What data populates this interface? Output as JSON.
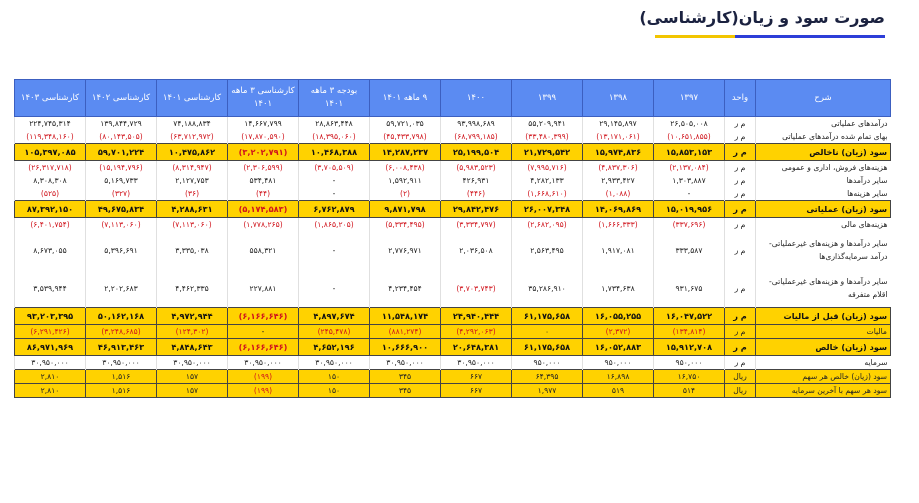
{
  "title": "صورت سود و زیان(کارشناسی)",
  "headers": [
    "شرح",
    "واحد",
    "۱۳۹۷",
    "۱۳۹۸",
    "۱۳۹۹",
    "۱۴۰۰",
    "۹ ماهه ۱۴۰۱",
    "بودجه ۳ ماهه ۱۴۰۱",
    "کارشناسی ۳ ماهه ۱۴۰۱",
    "کارشناسی ۱۴۰۱",
    "کارشناسی ۱۴۰۲",
    "کارشناسی ۱۴۰۳"
  ],
  "rows": [
    {
      "label": "درآمدهای عملیاتی",
      "unit": "م ر",
      "values": [
        "۲۶,۵۰۵,۰۰۸",
        "۲۹,۱۴۵,۸۹۷",
        "۵۵,۲۰۹,۹۴۱",
        "۹۳,۹۹۸,۶۸۹",
        "۵۹,۷۲۱,۰۳۵",
        "۲۸,۸۶۳,۴۴۸",
        "۱۴,۶۶۷,۷۹۹",
        "۷۴,۱۸۸,۸۳۴",
        "۱۳۹,۸۴۴,۷۲۹",
        "۲۲۴,۷۴۵,۳۱۴"
      ]
    },
    {
      "label": "بهای تمام شده درآمدهای عملیاتی",
      "unit": "م ر",
      "values": [
        "(۱۰,۶۵۱,۸۵۵)",
        "(۱۳,۱۷۱,۰۶۱)",
        "(۳۳,۴۸۰,۳۹۹)",
        "(۶۸,۷۹۹,۱۸۵)",
        "(۴۵,۴۳۳,۷۹۸)",
        "(۱۸,۳۹۵,۰۶۰)",
        "(۱۷,۸۷۰,۵۹۰)",
        "(۶۳,۷۱۲,۹۷۲)",
        "(۸۰,۱۴۳,۵۰۵)",
        "(۱۱۹,۳۴۸,۱۶۰)"
      ]
    },
    {
      "label": "سود (زیان) ناخالص",
      "unit": "م ر",
      "values": [
        "۱۵,۸۵۳,۱۵۳",
        "۱۵,۹۷۴,۸۳۶",
        "۲۱,۷۲۹,۵۴۲",
        "۲۵,۱۹۹,۵۰۴",
        "۱۴,۲۸۷,۲۳۷",
        "۱۰,۴۶۸,۳۸۸",
        "(۳,۲۰۲,۷۹۱)",
        "۱۰,۴۷۵,۸۶۲",
        "۵۹,۷۰۱,۲۲۴",
        "۱۰۵,۳۹۷,۰۸۵"
      ]
    },
    {
      "label": "هزینه‌های فروش، اداری و عمومی",
      "unit": "م ر",
      "values": [
        "(۲,۱۳۷,۰۸۴)",
        "(۴,۸۳۷,۳۰۶)",
        "(۷,۹۹۵,۷۱۶)",
        "(۵,۹۸۳,۵۲۳)",
        "(۶,۰۰۸,۴۳۸)",
        "(۳,۷۰۵,۵۰۹)",
        "(۲,۳۰۶,۵۹۹)",
        "(۸,۳۱۴,۹۴۷)",
        "(۱۵,۱۹۴,۷۹۶)",
        "(۲۶,۳۱۷,۷۱۸)"
      ]
    },
    {
      "label": "سایر درآمدها",
      "unit": "م ر",
      "values": [
        "۱,۳۰۳,۸۸۷",
        "۲,۹۳۳,۴۲۷",
        "۴,۲۸۲,۱۳۳",
        "۴۲۶,۹۳۱",
        "۱,۵۹۲,۹۱۱",
        "-",
        "۵۳۴,۴۸۱",
        "۲,۱۲۷,۷۵۳",
        "۵,۱۶۹,۷۳۳",
        "۸,۳۰۸,۳۰۸"
      ]
    },
    {
      "label": "سایر هزینه‌ها",
      "unit": "م ر",
      "values": [
        "-",
        "(۱,۰۸۸)",
        "(۱,۶۶۸,۶۱۰)",
        "(۴۴۶)",
        "(۲)",
        "-",
        "(۴۴)",
        "(۳۶)",
        "(۳۲۷)",
        "(۵۲۵)"
      ]
    },
    {
      "label": "سود (زیان) عملیاتی",
      "unit": "م ر",
      "values": [
        "۱۵,۰۱۹,۹۵۶",
        "۱۴,۰۶۹,۸۶۹",
        "۲۶,۰۰۷,۳۴۸",
        "۲۹,۸۴۲,۴۷۶",
        "۹,۸۷۱,۷۹۸",
        "۶,۷۶۲,۸۷۹",
        "(۵,۱۷۴,۵۸۳)",
        "۴,۲۸۸,۶۳۱",
        "۴۹,۶۷۵,۸۳۴",
        "۸۷,۳۹۲,۱۵۰"
      ]
    },
    {
      "label": "هزینه‌های مالی",
      "unit": "م ر",
      "values": [
        "(۳۳۷,۶۹۶)",
        "(۱,۶۶۶,۳۳۳)",
        "(۲,۶۸۲,۰۹۵)",
        "(۳,۳۳۴,۷۹۷)",
        "(۵,۳۳۴,۴۹۵)",
        "(۱,۸۶۵,۲۰۵)",
        "(۱,۷۷۸,۲۶۵)",
        "(۷,۱۱۳,۰۶۰)",
        "(۷,۱۱۳,۰۶۰)",
        "(۶,۴۰۱,۷۵۴)"
      ]
    },
    {
      "label": "سایر درآمدها و هزینه‌های غیرعملیاتی- درآمد سرمایه‌گذاری‌ها",
      "unit": "م ر",
      "values": [
        "۳۳۳,۵۸۷",
        "۱,۹۱۷,۰۸۱",
        "۲,۵۶۳,۴۹۵",
        "۲,۰۳۶,۵۰۸",
        "۲,۷۷۶,۹۷۱",
        "-",
        "۵۵۸,۳۲۱",
        "۳,۳۳۵,۰۳۸",
        "۵,۳۹۶,۶۹۱",
        "۸,۶۷۳,۰۵۵"
      ]
    },
    {
      "label": "سایر درآمدها و هزینه‌های غیرعملیاتی- اقلام متفرقه",
      "unit": "م ر",
      "values": [
        "۹۳۱,۶۷۵",
        "۱,۷۳۴,۶۳۸",
        "۳۵,۲۸۶,۹۱۰",
        "(۳,۷۰۳,۷۴۳)",
        "۴,۲۳۴,۴۵۴",
        "-",
        "۲۲۷,۸۸۱",
        "۴,۴۶۲,۳۳۵",
        "۲,۲۰۲,۶۸۳",
        "۳,۵۳۹,۹۴۴"
      ]
    },
    {
      "label": "سود (زیان) قبل از مالیات",
      "unit": "م ر",
      "values": [
        "۱۶,۰۴۷,۵۲۲",
        "۱۶,۰۵۵,۲۵۵",
        "۶۱,۱۷۵,۶۵۸",
        "۲۴,۹۴۰,۴۴۴",
        "۱۱,۵۴۸,۱۷۴",
        "۴,۸۹۷,۶۷۴",
        "(۶,۱۶۶,۶۴۶)",
        "۴,۹۷۲,۹۴۴",
        "۵۰,۱۶۲,۱۶۸",
        "۹۳,۲۰۳,۳۹۵"
      ]
    },
    {
      "label": "مالیات",
      "unit": "م ر",
      "values": [
        "(۱۳۴,۸۱۴)",
        "(۲,۳۷۲)",
        "۰",
        "(۴,۲۹۲,۰۶۳)",
        "(۸۸۱,۲۷۴)",
        "(۲۴۵,۴۷۸)",
        "-",
        "(۱۲۴,۳۰۲)",
        "(۳,۲۴۸,۶۸۵)",
        "(۶,۲۹۱,۴۲۶)"
      ]
    },
    {
      "label": "سود (زیان) خالص",
      "unit": "م ر",
      "values": [
        "۱۵,۹۱۲,۷۰۸",
        "۱۶,۰۵۲,۸۸۳",
        "۶۱,۱۷۵,۶۵۸",
        "۲۰,۶۴۸,۳۸۱",
        "۱۰,۶۶۶,۹۰۰",
        "۴,۶۵۲,۱۹۶",
        "(۶,۱۶۶,۶۴۶)",
        "۴,۸۴۸,۶۴۳",
        "۴۶,۹۱۳,۴۶۳",
        "۸۶,۹۷۱,۹۶۹"
      ]
    },
    {
      "label": "سرمایه",
      "unit": "م ر",
      "values": [
        "۹۵۰,۰۰۰",
        "۹۵۰,۰۰۰",
        "۹۵۰,۰۰۰",
        "۳۰,۹۵۰,۰۰۰",
        "۳۰,۹۵۰,۰۰۰",
        "۳۰,۹۵۰,۰۰۰",
        "۳۰,۹۵۰,۰۰۰",
        "۳۰,۹۵۰,۰۰۰",
        "۳۰,۹۵۰,۰۰۰",
        "۳۰,۹۵۰,۰۰۰"
      ]
    },
    {
      "label": "سود (زیان) خالص هر سهم",
      "unit": "ریال",
      "values": [
        "۱۶,۷۵۰",
        "۱۶,۸۹۸",
        "۶۴,۳۹۵",
        "۶۶۷",
        "۳۴۵",
        "۱۵۰",
        "(۱۹۹)",
        "۱۵۷",
        "۱,۵۱۶",
        "۲,۸۱۰"
      ]
    },
    {
      "label": "سود هر سهم با آخرین سرمایه",
      "unit": "ریال",
      "values": [
        "۵۱۴",
        "۵۱۹",
        "۱,۹۷۷",
        "۶۶۷",
        "۳۴۵",
        "۱۵۰",
        "(۱۹۹)",
        "۱۵۷",
        "۱,۵۱۶",
        "۲,۸۱۰"
      ]
    }
  ]
}
